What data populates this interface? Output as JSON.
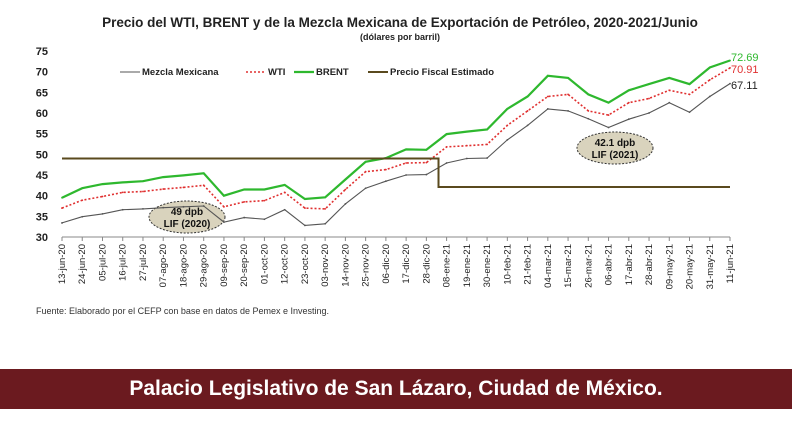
{
  "chart_data": {
    "type": "line",
    "title": "Precio del WTI, BRENT y de la Mezcla Mexicana de Exportación de Petróleo, 2020-2021/Junio",
    "subtitle": "(dólares por barril)",
    "ylim": [
      30,
      75
    ],
    "yticks": [
      30,
      35,
      40,
      45,
      50,
      55,
      60,
      65,
      70,
      75
    ],
    "legend_position": "top-left",
    "grid": false,
    "x_ticks": [
      "13-jun-20",
      "24-jun-20",
      "05-jul-20",
      "16-jul-20",
      "27-jul-20",
      "07-ago-20",
      "18-ago-20",
      "29-ago-20",
      "09-sep-20",
      "20-sep-20",
      "01-oct-20",
      "12-oct-20",
      "23-oct-20",
      "03-nov-20",
      "14-nov-20",
      "25-nov-20",
      "06-dic-20",
      "17-dic-20",
      "28-dic-20",
      "08-ene-21",
      "19-ene-21",
      "30-ene-21",
      "10-feb-21",
      "21-feb-21",
      "04-mar-21",
      "15-mar-21",
      "26-mar-21",
      "06-abr-21",
      "17-abr-21",
      "28-abr-21",
      "09-may-21",
      "20-may-21",
      "31-may-21",
      "11-jun-21"
    ],
    "series": [
      {
        "name": "Mezcla Mexicana",
        "color": "#555555",
        "style": "solid",
        "values": [
          33.4,
          34.9,
          35.6,
          36.6,
          36.8,
          37.1,
          37.3,
          37.5,
          33.6,
          34.7,
          34.3,
          36.6,
          32.8,
          33.2,
          38.0,
          41.8,
          43.5,
          45.0,
          45.1,
          47.9,
          49.0,
          49.1,
          53.5,
          57.0,
          61.0,
          60.5,
          58.6,
          56.5,
          58.5,
          60.0,
          62.5,
          60.2,
          64.0,
          67.11
        ]
      },
      {
        "name": "WTI",
        "color": "#e03030",
        "style": "dotted",
        "values": [
          37.0,
          38.9,
          39.8,
          40.8,
          41.0,
          41.6,
          42.0,
          42.5,
          37.3,
          38.5,
          38.8,
          40.8,
          37.0,
          36.8,
          41.5,
          45.8,
          46.3,
          47.9,
          48.0,
          51.8,
          52.1,
          52.4,
          57.0,
          60.5,
          64.0,
          64.5,
          60.5,
          59.5,
          62.5,
          63.5,
          65.5,
          64.5,
          68.0,
          70.91
        ]
      },
      {
        "name": "BRENT",
        "color": "#2eb82e",
        "style": "solid",
        "values": [
          39.5,
          41.8,
          42.8,
          43.2,
          43.5,
          44.5,
          44.9,
          45.4,
          40.0,
          41.5,
          41.5,
          42.6,
          39.2,
          39.6,
          43.9,
          48.2,
          49.1,
          51.2,
          51.1,
          54.9,
          55.5,
          56.0,
          61.0,
          64.0,
          69.0,
          68.5,
          64.5,
          62.5,
          65.5,
          67.0,
          68.5,
          67.0,
          71.0,
          72.69
        ]
      },
      {
        "name": "Precio Fiscal Estimado",
        "color": "#5a4a1e",
        "style": "solid",
        "values": [
          49,
          49,
          49,
          49,
          49,
          49,
          49,
          49,
          49,
          49,
          49,
          49,
          49,
          49,
          49,
          49,
          49,
          49,
          49,
          42.1,
          42.1,
          42.1,
          42.1,
          42.1,
          42.1,
          42.1,
          42.1,
          42.1,
          42.1,
          42.1,
          42.1,
          42.1,
          42.1,
          42.1
        ]
      }
    ],
    "end_labels": [
      "72.69",
      "70.91",
      "67.11"
    ],
    "annotations": [
      {
        "line1": "49 dpb",
        "line2": "LIF (2020)"
      },
      {
        "line1": "42.1 dpb",
        "line2": "LIF (2021)"
      }
    ]
  },
  "source": "Fuente: Elaborado por el CEFP con base en datos de Pemex e Investing.",
  "footer_banner": "Palacio Legislativo de San Lázaro, Ciudad de México.",
  "colors": {
    "banner": "#6b1a1f",
    "annotation_fill": "#d9d3bd"
  }
}
